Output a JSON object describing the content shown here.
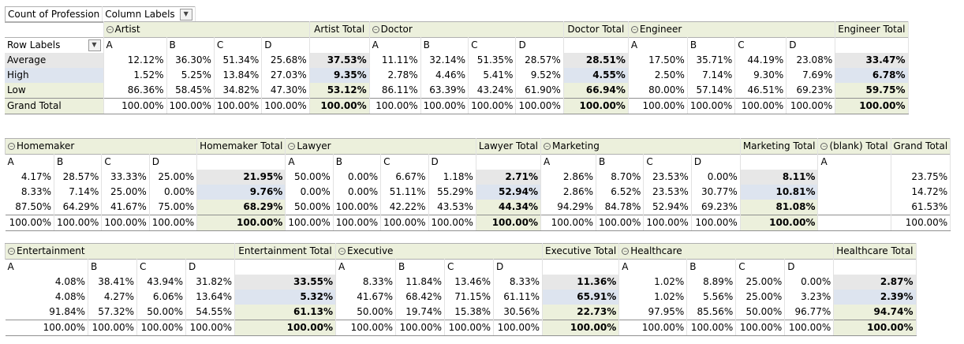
{
  "top": {
    "corner": "Count of Profession",
    "col_labels": "Column Labels",
    "row_labels": "Row Labels"
  },
  "row_names": [
    "Average",
    "High",
    "Low",
    "Grand Total"
  ],
  "blocks": [
    {
      "groups": [
        {
          "name": "Artist",
          "total_label": "Artist Total",
          "sub": [
            "A",
            "B",
            "C",
            "D"
          ],
          "values": [
            [
              "12.12%",
              "36.30%",
              "51.34%",
              "25.68%"
            ],
            [
              "1.52%",
              "5.25%",
              "13.84%",
              "27.03%"
            ],
            [
              "86.36%",
              "58.45%",
              "34.82%",
              "47.30%"
            ],
            [
              "100.00%",
              "100.00%",
              "100.00%",
              "100.00%"
            ]
          ],
          "totals": [
            "37.53%",
            "9.35%",
            "53.12%",
            "100.00%"
          ]
        },
        {
          "name": "Doctor",
          "total_label": "Doctor Total",
          "sub": [
            "A",
            "B",
            "C",
            "D"
          ],
          "values": [
            [
              "11.11%",
              "32.14%",
              "51.35%",
              "28.57%"
            ],
            [
              "2.78%",
              "4.46%",
              "5.41%",
              "9.52%"
            ],
            [
              "86.11%",
              "63.39%",
              "43.24%",
              "61.90%"
            ],
            [
              "100.00%",
              "100.00%",
              "100.00%",
              "100.00%"
            ]
          ],
          "totals": [
            "28.51%",
            "4.55%",
            "66.94%",
            "100.00%"
          ]
        },
        {
          "name": "Engineer",
          "total_label": "Engineer Total",
          "sub": [
            "A",
            "B",
            "C",
            "D"
          ],
          "values": [
            [
              "17.50%",
              "35.71%",
              "44.19%",
              "23.08%"
            ],
            [
              "2.50%",
              "7.14%",
              "9.30%",
              "7.69%"
            ],
            [
              "80.00%",
              "57.14%",
              "46.51%",
              "69.23%"
            ],
            [
              "100.00%",
              "100.00%",
              "100.00%",
              "100.00%"
            ]
          ],
          "totals": [
            "33.47%",
            "6.78%",
            "59.75%",
            "100.00%"
          ]
        }
      ]
    },
    {
      "groups": [
        {
          "name": "Homemaker",
          "total_label": "Homemaker Total",
          "sub": [
            "A",
            "B",
            "C",
            "D"
          ],
          "values": [
            [
              "4.17%",
              "28.57%",
              "33.33%",
              "25.00%"
            ],
            [
              "8.33%",
              "7.14%",
              "25.00%",
              "0.00%"
            ],
            [
              "87.50%",
              "64.29%",
              "41.67%",
              "75.00%"
            ],
            [
              "100.00%",
              "100.00%",
              "100.00%",
              "100.00%"
            ]
          ],
          "totals": [
            "21.95%",
            "9.76%",
            "68.29%",
            "100.00%"
          ]
        },
        {
          "name": "Lawyer",
          "total_label": "Lawyer Total",
          "sub": [
            "A",
            "B",
            "C",
            "D"
          ],
          "values": [
            [
              "50.00%",
              "0.00%",
              "6.67%",
              "1.18%"
            ],
            [
              "0.00%",
              "0.00%",
              "51.11%",
              "55.29%"
            ],
            [
              "50.00%",
              "100.00%",
              "42.22%",
              "43.53%"
            ],
            [
              "100.00%",
              "100.00%",
              "100.00%",
              "100.00%"
            ]
          ],
          "totals": [
            "2.71%",
            "52.94%",
            "44.34%",
            "100.00%"
          ]
        },
        {
          "name": "Marketing",
          "total_label": "Marketing Total",
          "sub": [
            "A",
            "B",
            "C",
            "D"
          ],
          "values": [
            [
              "2.86%",
              "8.70%",
              "23.53%",
              "0.00%"
            ],
            [
              "2.86%",
              "6.52%",
              "23.53%",
              "30.77%"
            ],
            [
              "94.29%",
              "84.78%",
              "52.94%",
              "69.23%"
            ],
            [
              "100.00%",
              "100.00%",
              "100.00%",
              "100.00%"
            ]
          ],
          "totals": [
            "8.11%",
            "10.81%",
            "81.08%",
            "100.00%"
          ]
        }
      ],
      "blank": {
        "label": "(blank) Total",
        "sub": "A"
      },
      "grand": {
        "label": "Grand Total",
        "values": [
          "23.75%",
          "14.72%",
          "61.53%",
          "100.00%"
        ]
      }
    },
    {
      "groups": [
        {
          "name": "Entertainment",
          "total_label": "Entertainment Total",
          "sub": [
            "A",
            "B",
            "C",
            "D"
          ],
          "values": [
            [
              "4.08%",
              "38.41%",
              "43.94%",
              "31.82%"
            ],
            [
              "4.08%",
              "4.27%",
              "6.06%",
              "13.64%"
            ],
            [
              "91.84%",
              "57.32%",
              "50.00%",
              "54.55%"
            ],
            [
              "100.00%",
              "100.00%",
              "100.00%",
              "100.00%"
            ]
          ],
          "totals": [
            "33.55%",
            "5.32%",
            "61.13%",
            "100.00%"
          ]
        },
        {
          "name": "Executive",
          "total_label": "Executive Total",
          "sub": [
            "A",
            "B",
            "C",
            "D"
          ],
          "values": [
            [
              "8.33%",
              "11.84%",
              "13.46%",
              "8.33%"
            ],
            [
              "41.67%",
              "68.42%",
              "71.15%",
              "61.11%"
            ],
            [
              "50.00%",
              "19.74%",
              "15.38%",
              "30.56%"
            ],
            [
              "100.00%",
              "100.00%",
              "100.00%",
              "100.00%"
            ]
          ],
          "totals": [
            "11.36%",
            "65.91%",
            "22.73%",
            "100.00%"
          ]
        },
        {
          "name": "Healthcare",
          "total_label": "Healthcare Total",
          "sub": [
            "A",
            "B",
            "C",
            "D"
          ],
          "values": [
            [
              "1.02%",
              "8.89%",
              "25.00%",
              "0.00%"
            ],
            [
              "1.02%",
              "5.56%",
              "25.00%",
              "3.23%"
            ],
            [
              "97.95%",
              "85.56%",
              "50.00%",
              "96.77%"
            ],
            [
              "100.00%",
              "100.00%",
              "100.00%",
              "100.00%"
            ]
          ],
          "totals": [
            "2.87%",
            "2.39%",
            "94.74%",
            "100.00%"
          ]
        }
      ]
    }
  ]
}
